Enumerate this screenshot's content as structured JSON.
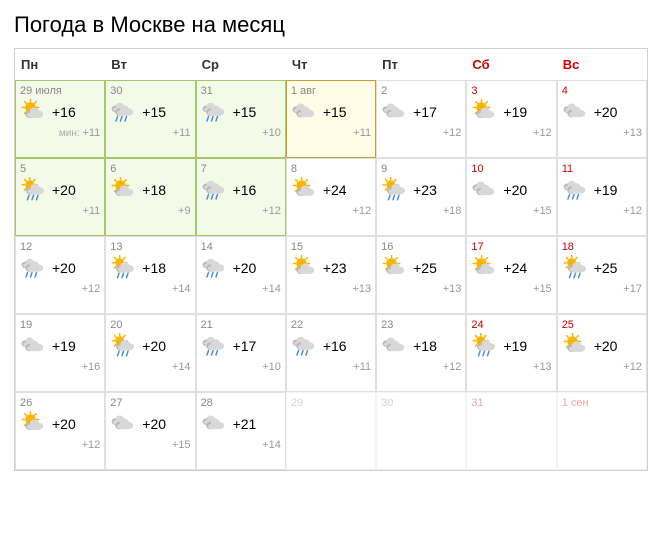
{
  "title": "Погода в Москве на месяц",
  "weekdays": [
    {
      "label": "Пн",
      "weekend": false
    },
    {
      "label": "Вт",
      "weekend": false
    },
    {
      "label": "Ср",
      "weekend": false
    },
    {
      "label": "Чт",
      "weekend": false
    },
    {
      "label": "Пт",
      "weekend": false
    },
    {
      "label": "Сб",
      "weekend": true
    },
    {
      "label": "Вс",
      "weekend": true
    }
  ],
  "min_prefix": "мин: ",
  "days": [
    {
      "date": "29 июля",
      "weekend": false,
      "hi": "+16",
      "lo": "+11",
      "show_min": true,
      "icon": "partly-cloudy",
      "state": "highlighted"
    },
    {
      "date": "30",
      "weekend": false,
      "hi": "+15",
      "lo": "+11",
      "icon": "rain",
      "state": "highlighted"
    },
    {
      "date": "31",
      "weekend": false,
      "hi": "+15",
      "lo": "+10",
      "icon": "rain",
      "state": "highlighted"
    },
    {
      "date": "1 авг",
      "weekend": false,
      "hi": "+15",
      "lo": "+11",
      "icon": "cloudy",
      "state": "today"
    },
    {
      "date": "2",
      "weekend": false,
      "hi": "+17",
      "lo": "+12",
      "icon": "cloudy",
      "state": "normal"
    },
    {
      "date": "3",
      "weekend": true,
      "hi": "+19",
      "lo": "+12",
      "icon": "partly-cloudy",
      "state": "normal"
    },
    {
      "date": "4",
      "weekend": true,
      "hi": "+20",
      "lo": "+13",
      "icon": "cloudy",
      "state": "normal"
    },
    {
      "date": "5",
      "weekend": false,
      "hi": "+20",
      "lo": "+11",
      "icon": "sun-rain",
      "state": "highlighted"
    },
    {
      "date": "6",
      "weekend": false,
      "hi": "+18",
      "lo": "+9",
      "icon": "partly-cloudy",
      "state": "highlighted"
    },
    {
      "date": "7",
      "weekend": false,
      "hi": "+16",
      "lo": "+12",
      "icon": "rain",
      "state": "highlighted"
    },
    {
      "date": "8",
      "weekend": false,
      "hi": "+24",
      "lo": "+12",
      "icon": "partly-cloudy",
      "state": "normal"
    },
    {
      "date": "9",
      "weekend": false,
      "hi": "+23",
      "lo": "+18",
      "icon": "sun-rain",
      "state": "normal"
    },
    {
      "date": "10",
      "weekend": true,
      "hi": "+20",
      "lo": "+15",
      "icon": "cloudy",
      "state": "normal"
    },
    {
      "date": "11",
      "weekend": true,
      "hi": "+19",
      "lo": "+12",
      "icon": "rain",
      "state": "normal"
    },
    {
      "date": "12",
      "weekend": false,
      "hi": "+20",
      "lo": "+12",
      "icon": "rain",
      "state": "normal"
    },
    {
      "date": "13",
      "weekend": false,
      "hi": "+18",
      "lo": "+14",
      "icon": "sun-rain",
      "state": "normal"
    },
    {
      "date": "14",
      "weekend": false,
      "hi": "+20",
      "lo": "+14",
      "icon": "rain",
      "state": "normal"
    },
    {
      "date": "15",
      "weekend": false,
      "hi": "+23",
      "lo": "+13",
      "icon": "partly-cloudy",
      "state": "normal"
    },
    {
      "date": "16",
      "weekend": false,
      "hi": "+25",
      "lo": "+13",
      "icon": "partly-cloudy",
      "state": "normal"
    },
    {
      "date": "17",
      "weekend": true,
      "hi": "+24",
      "lo": "+15",
      "icon": "partly-cloudy",
      "state": "normal"
    },
    {
      "date": "18",
      "weekend": true,
      "hi": "+25",
      "lo": "+17",
      "icon": "sun-rain",
      "state": "normal"
    },
    {
      "date": "19",
      "weekend": false,
      "hi": "+19",
      "lo": "+16",
      "icon": "cloudy",
      "state": "normal"
    },
    {
      "date": "20",
      "weekend": false,
      "hi": "+20",
      "lo": "+14",
      "icon": "sun-rain",
      "state": "normal"
    },
    {
      "date": "21",
      "weekend": false,
      "hi": "+17",
      "lo": "+10",
      "icon": "rain",
      "state": "normal"
    },
    {
      "date": "22",
      "weekend": false,
      "hi": "+16",
      "lo": "+11",
      "icon": "rain",
      "state": "normal"
    },
    {
      "date": "23",
      "weekend": false,
      "hi": "+18",
      "lo": "+12",
      "icon": "cloudy",
      "state": "normal"
    },
    {
      "date": "24",
      "weekend": true,
      "hi": "+19",
      "lo": "+13",
      "icon": "sun-rain",
      "state": "normal"
    },
    {
      "date": "25",
      "weekend": true,
      "hi": "+20",
      "lo": "+12",
      "icon": "partly-cloudy",
      "state": "normal"
    },
    {
      "date": "26",
      "weekend": false,
      "hi": "+20",
      "lo": "+12",
      "icon": "partly-cloudy",
      "state": "normal"
    },
    {
      "date": "27",
      "weekend": false,
      "hi": "+20",
      "lo": "+15",
      "icon": "cloudy",
      "state": "normal"
    },
    {
      "date": "28",
      "weekend": false,
      "hi": "+21",
      "lo": "+14",
      "icon": "cloudy",
      "state": "normal"
    },
    {
      "date": "29",
      "weekend": false,
      "disabled": true,
      "state": "normal"
    },
    {
      "date": "30",
      "weekend": false,
      "disabled": true,
      "state": "normal"
    },
    {
      "date": "31",
      "weekend": true,
      "disabled": true,
      "state": "normal"
    },
    {
      "date": "1 сен",
      "weekend": true,
      "disabled": true,
      "state": "normal"
    }
  ],
  "icons": {
    "sun_color": "#f7b500",
    "cloud_light": "#d8d8d8",
    "cloud_dark": "#b8b8b8",
    "rain_color": "#4a90d9"
  }
}
